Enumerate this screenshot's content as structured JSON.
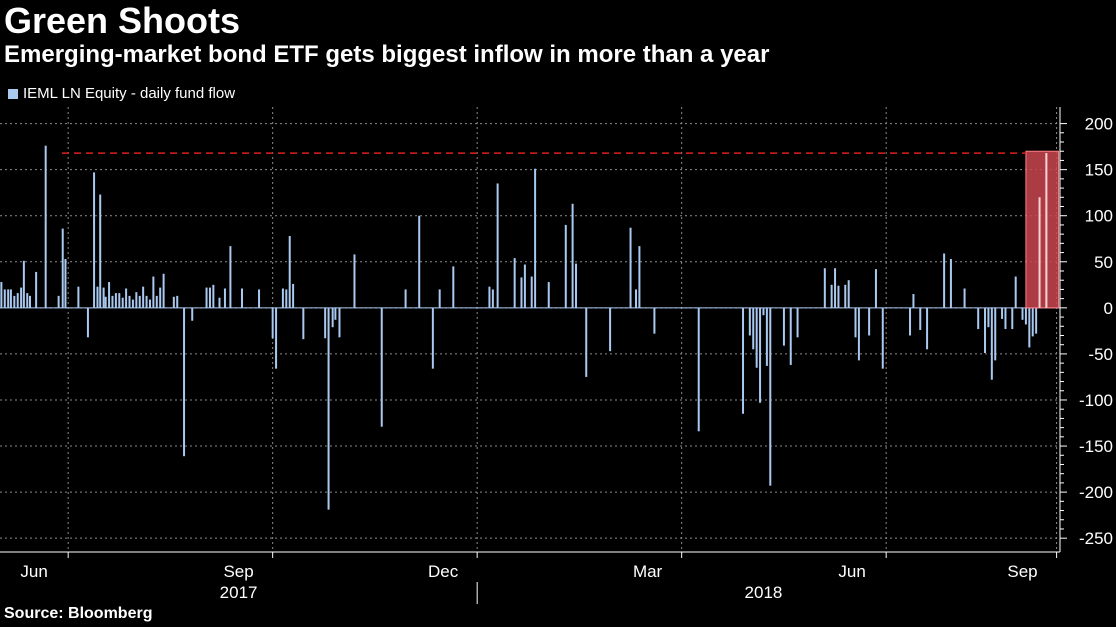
{
  "title": "Green Shoots",
  "subtitle": "Emerging-market bond ETF gets biggest inflow in more than a year",
  "source": "Source: Bloomberg",
  "colors": {
    "bar": "#a9c9f0",
    "threshold": "#e0211e",
    "highlight_fill": "#c9464f",
    "highlight_stroke": "#ff7f86",
    "grid": "#8a8a8a"
  },
  "chart_data": {
    "type": "bar",
    "title": "Green Shoots",
    "subtitle": "Emerging-market bond ETF gets biggest inflow in more than a year",
    "legend": [
      "IEML LN Equity - daily fund flow"
    ],
    "legend_position": "top-left",
    "ylabel": "",
    "ylim": [
      -265,
      218
    ],
    "y_ticks": [
      200,
      150,
      100,
      50,
      0,
      -50,
      -100,
      -150,
      -200,
      -250
    ],
    "grid": true,
    "x_range": [
      0.0,
      15.55
    ],
    "x_unit": "months since start of Jun 2017",
    "month_ticks": [
      {
        "label": "Jun",
        "x": 0.5
      },
      {
        "label": "Sep",
        "x": 3.5
      },
      {
        "label": "Dec",
        "x": 6.5
      },
      {
        "label": "Mar",
        "x": 9.5
      },
      {
        "label": "Jun",
        "x": 12.5
      },
      {
        "label": "Sep",
        "x": 15.0
      }
    ],
    "month_boundaries": [
      1,
      4,
      7,
      10,
      13,
      15.5
    ],
    "year_labels": [
      {
        "label": "2017",
        "x": 3.5
      },
      {
        "label": "2018",
        "x": 11.2
      }
    ],
    "year_divider_x": 7.0,
    "threshold": {
      "value": 168,
      "x_start": 0.91
    },
    "highlight": {
      "x_start": 15.05,
      "x_end": 15.53,
      "y_min": 0,
      "y_max": 170
    },
    "series": [
      {
        "name": "IEML LN Equity - daily fund flow",
        "points": [
          [
            0.02,
            28
          ],
          [
            0.07,
            20
          ],
          [
            0.12,
            20
          ],
          [
            0.16,
            20
          ],
          [
            0.21,
            13
          ],
          [
            0.26,
            16
          ],
          [
            0.31,
            22
          ],
          [
            0.35,
            51
          ],
          [
            0.4,
            16
          ],
          [
            0.44,
            13
          ],
          [
            0.53,
            39
          ],
          [
            0.67,
            176
          ],
          [
            0.86,
            13
          ],
          [
            0.92,
            86
          ],
          [
            0.96,
            53
          ],
          [
            1.15,
            23
          ],
          [
            1.29,
            -32
          ],
          [
            1.38,
            147
          ],
          [
            1.43,
            23
          ],
          [
            1.47,
            123
          ],
          [
            1.52,
            22
          ],
          [
            1.55,
            12
          ],
          [
            1.6,
            28
          ],
          [
            1.65,
            13
          ],
          [
            1.7,
            16
          ],
          [
            1.75,
            16
          ],
          [
            1.8,
            11
          ],
          [
            1.85,
            21
          ],
          [
            1.9,
            13
          ],
          [
            1.95,
            9
          ],
          [
            2.0,
            17
          ],
          [
            2.05,
            13
          ],
          [
            2.1,
            23
          ],
          [
            2.15,
            13
          ],
          [
            2.2,
            9
          ],
          [
            2.25,
            34
          ],
          [
            2.3,
            13
          ],
          [
            2.35,
            22
          ],
          [
            2.4,
            37
          ],
          [
            2.55,
            12
          ],
          [
            2.6,
            13
          ],
          [
            2.7,
            -161
          ],
          [
            2.82,
            -14
          ],
          [
            3.03,
            22
          ],
          [
            3.08,
            22
          ],
          [
            3.13,
            25
          ],
          [
            3.22,
            11
          ],
          [
            3.3,
            21
          ],
          [
            3.38,
            67
          ],
          [
            3.55,
            21
          ],
          [
            3.8,
            20
          ],
          [
            4.0,
            -33
          ],
          [
            4.05,
            -66
          ],
          [
            4.15,
            21
          ],
          [
            4.2,
            20
          ],
          [
            4.25,
            78
          ],
          [
            4.3,
            26
          ],
          [
            4.45,
            -34
          ],
          [
            4.77,
            -33
          ],
          [
            4.82,
            -219
          ],
          [
            4.88,
            -21
          ],
          [
            4.92,
            -13
          ],
          [
            4.98,
            -32
          ],
          [
            5.2,
            58
          ],
          [
            5.6,
            -129
          ],
          [
            5.95,
            20
          ],
          [
            6.15,
            100
          ],
          [
            6.35,
            -66
          ],
          [
            6.45,
            20
          ],
          [
            6.65,
            45
          ],
          [
            7.18,
            23
          ],
          [
            7.23,
            20
          ],
          [
            7.3,
            135
          ],
          [
            7.55,
            54
          ],
          [
            7.65,
            33
          ],
          [
            7.7,
            47
          ],
          [
            7.8,
            34
          ],
          [
            7.85,
            151
          ],
          [
            8.05,
            28
          ],
          [
            8.3,
            90
          ],
          [
            8.4,
            113
          ],
          [
            8.45,
            48
          ],
          [
            8.6,
            -75
          ],
          [
            8.95,
            -47
          ],
          [
            9.25,
            87
          ],
          [
            9.33,
            20
          ],
          [
            9.38,
            67
          ],
          [
            9.6,
            -28
          ],
          [
            10.25,
            -134
          ],
          [
            10.9,
            -115
          ],
          [
            11.0,
            -30
          ],
          [
            11.05,
            -45
          ],
          [
            11.1,
            -65
          ],
          [
            11.15,
            -103
          ],
          [
            11.2,
            -8
          ],
          [
            11.25,
            -63
          ],
          [
            11.3,
            -193
          ],
          [
            11.5,
            -41
          ],
          [
            11.6,
            -62
          ],
          [
            11.7,
            -32
          ],
          [
            12.1,
            43
          ],
          [
            12.2,
            25
          ],
          [
            12.25,
            43
          ],
          [
            12.3,
            24
          ],
          [
            12.4,
            25
          ],
          [
            12.45,
            30
          ],
          [
            12.55,
            -32
          ],
          [
            12.6,
            -57
          ],
          [
            12.75,
            -30
          ],
          [
            12.85,
            42
          ],
          [
            12.95,
            -66
          ],
          [
            13.35,
            -30
          ],
          [
            13.4,
            15
          ],
          [
            13.5,
            -24
          ],
          [
            13.6,
            -45
          ],
          [
            13.85,
            59
          ],
          [
            13.95,
            53
          ],
          [
            14.15,
            21
          ],
          [
            14.35,
            -23
          ],
          [
            14.45,
            -49
          ],
          [
            14.5,
            -21
          ],
          [
            14.55,
            -78
          ],
          [
            14.6,
            -57
          ],
          [
            14.7,
            -12
          ],
          [
            14.75,
            -23
          ],
          [
            14.85,
            -23
          ],
          [
            14.9,
            34
          ],
          [
            15.0,
            -13
          ],
          [
            15.05,
            -18
          ],
          [
            15.1,
            -43
          ],
          [
            15.15,
            -31
          ],
          [
            15.2,
            -28
          ],
          [
            15.25,
            120
          ],
          [
            15.35,
            168
          ]
        ]
      }
    ]
  }
}
